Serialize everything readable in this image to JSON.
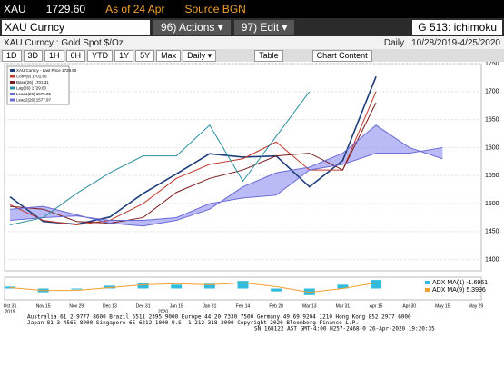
{
  "header": {
    "ticker": "XAU",
    "price": "1729.60",
    "asof": "As of 24 Apr",
    "source": "Source BGN"
  },
  "command": {
    "security": "XAU Curncy",
    "actions": "96) Actions ▾",
    "edit": "97) Edit ▾",
    "page": "G 513: ichimoku"
  },
  "info": {
    "name": "XAU Curncy : Gold Spot  $/Oz",
    "period": "Daily",
    "range": "10/28/2019-4/25/2020"
  },
  "toolbar": {
    "buttons": [
      "1D",
      "3D",
      "1H",
      "6H",
      "YTD",
      "1Y",
      "5Y",
      "Max",
      "Daily ▾",
      "Table",
      "Chart Content"
    ]
  },
  "legend": [
    "XAU Curncy - Last Price 1729.60",
    "Conv(9) 1701.86",
    "Base(26) 1701.31",
    "Lag(26) 1729.60",
    "Lead1(26) 1575.35",
    "Lead2(26) 1577.97"
  ],
  "chart_data": {
    "type": "line",
    "categories": [
      "Oct 31",
      "Nov 15",
      "Nov 29",
      "Dec 13",
      "Dec 31",
      "Jan 15",
      "Jan 31",
      "Feb 14",
      "Feb 28",
      "Mar 13",
      "Mar 31",
      "Apr 15",
      "Apr 30",
      "May 15",
      "May 29"
    ],
    "years": [
      "2019",
      "2020"
    ],
    "ylim": [
      1380,
      1750
    ],
    "yticks": [
      1400,
      1450,
      1500,
      1550,
      1600,
      1650,
      1700,
      1750
    ],
    "grid": true,
    "series": [
      {
        "name": "Last Price",
        "color": "#1f3d7a",
        "values": [
          1512,
          1468,
          1463,
          1476,
          1518,
          1553,
          1589,
          1583,
          1585,
          1530,
          1577,
          1727,
          null,
          null,
          null
        ]
      },
      {
        "name": "Conv(9)",
        "color": "#c0392b",
        "values": [
          1498,
          1470,
          1462,
          1470,
          1500,
          1545,
          1570,
          1580,
          1610,
          1560,
          1560,
          1700,
          null,
          null,
          null
        ]
      },
      {
        "name": "Base(26)",
        "color": "#7a1c1c",
        "values": [
          1495,
          1490,
          1468,
          1465,
          1475,
          1520,
          1545,
          1560,
          1585,
          1590,
          1560,
          1680,
          null,
          null,
          null
        ]
      },
      {
        "name": "Lead1(26)",
        "color": "#6b6bd6",
        "values": [
          1490,
          1495,
          1480,
          1465,
          1460,
          1470,
          1490,
          1530,
          1555,
          1565,
          1590,
          1640,
          1600,
          1580,
          null
        ]
      },
      {
        "name": "Lead2(26)",
        "color": "#6b6bd6",
        "values": [
          1470,
          1475,
          1478,
          1470,
          1470,
          1475,
          1500,
          1510,
          1515,
          1560,
          1570,
          1590,
          1590,
          1600,
          null
        ]
      },
      {
        "name": "Lag(26)",
        "color": "#2a8fa0",
        "values": [
          1462,
          1475,
          1518,
          1555,
          1585,
          1585,
          1640,
          1540,
          1620,
          1700,
          null,
          null,
          null,
          null,
          null
        ]
      }
    ],
    "cloud_color": "#8c8cf0"
  },
  "panel": {
    "type": "bar",
    "ylim": [
      -12,
      12
    ],
    "series": [
      {
        "name": "ADX MA(1) -1.6961",
        "color": "#33bbdd",
        "values": [
          2,
          -4,
          -1,
          3,
          6,
          4,
          5,
          8,
          -3,
          -7,
          4,
          9,
          null,
          null,
          null
        ]
      },
      {
        "name": "ADX MA(9) 5.3996",
        "color": "#f0a030",
        "values": [
          1,
          -2,
          -2,
          1,
          4,
          5,
          4,
          6,
          2,
          -4,
          0,
          6,
          null,
          null,
          null
        ]
      }
    ]
  },
  "footer": [
    "Australia 61 2 9777 8600 Brazil 5511 2395 9000 Europe 44 20 7330 7500 Germany 49 69 9204 1210 Hong Kong 852 2977 6000",
    "Japan 81 3 4565 8900      Singapore 65 6212 1000      U.S. 1 212 318 2000       Copyright 2020 Bloomberg Finance L.P.",
    "SN 168122 AST  GMT-4:00 H257-2468-0 26-Apr-2020 19:20:35"
  ]
}
